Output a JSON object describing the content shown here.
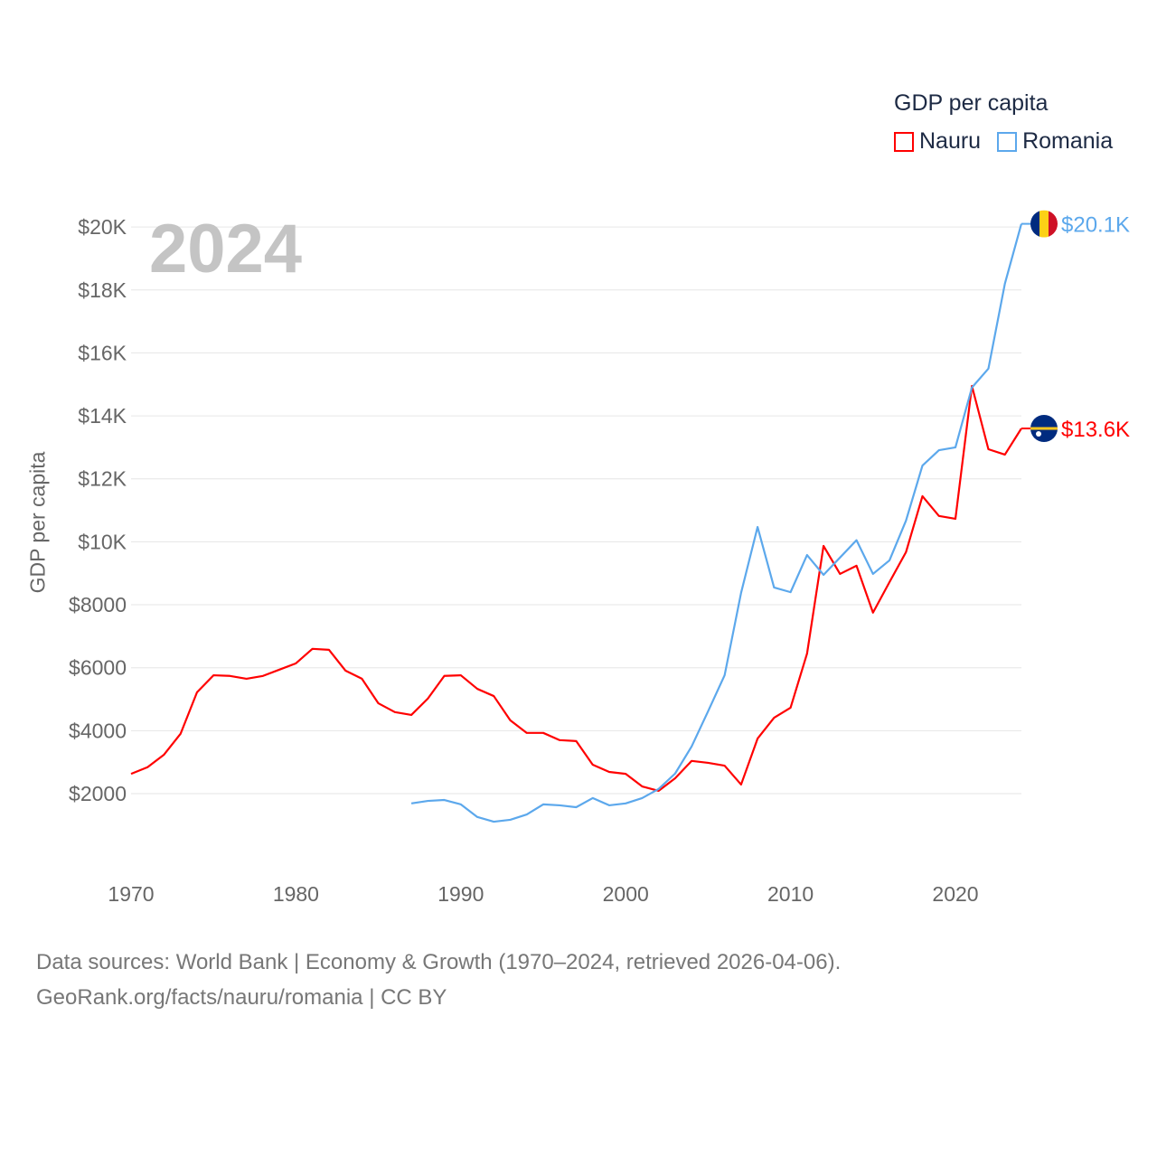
{
  "chart_data": {
    "type": "line",
    "title": "GDP per capita",
    "ylabel": "GDP per capita",
    "xlabel": "",
    "year_label": "2024",
    "xlim": [
      1970,
      2024
    ],
    "ylim": [
      0,
      20000
    ],
    "x_ticks": [
      "1970",
      "1980",
      "1990",
      "2000",
      "2010",
      "2020"
    ],
    "x_tick_values": [
      1970,
      1980,
      1990,
      2000,
      2010,
      2020
    ],
    "y_ticks": [
      "$2000",
      "$4000",
      "$6000",
      "$8000",
      "$10K",
      "$12K",
      "$14K",
      "$16K",
      "$18K",
      "$20K"
    ],
    "y_tick_values": [
      2000,
      4000,
      6000,
      8000,
      10000,
      12000,
      14000,
      16000,
      18000,
      20000
    ],
    "grid": true,
    "legend_placement": "top-right",
    "series": [
      {
        "name": "Nauru",
        "color": "#ff0000",
        "end_label": "$13.6K",
        "flag": "nauru-flag",
        "x": [
          1970,
          1971,
          1972,
          1973,
          1974,
          1975,
          1976,
          1977,
          1978,
          1979,
          1980,
          1981,
          1982,
          1983,
          1984,
          1985,
          1986,
          1987,
          1988,
          1989,
          1990,
          1991,
          1992,
          1993,
          1994,
          1995,
          1996,
          1997,
          1998,
          1999,
          2000,
          2001,
          2002,
          2003,
          2004,
          2005,
          2006,
          2007,
          2008,
          2009,
          2010,
          2011,
          2012,
          2013,
          2014,
          2015,
          2016,
          2017,
          2018,
          2019,
          2020,
          2021,
          2022,
          2023,
          2024
        ],
        "values": [
          2630,
          2840,
          3240,
          3900,
          5220,
          5760,
          5740,
          5650,
          5740,
          5940,
          6140,
          6600,
          6570,
          5910,
          5650,
          4870,
          4590,
          4500,
          5020,
          5740,
          5760,
          5330,
          5100,
          4330,
          3930,
          3930,
          3700,
          3670,
          2920,
          2690,
          2630,
          2230,
          2090,
          2490,
          3040,
          2980,
          2890,
          2290,
          3750,
          4410,
          4730,
          6450,
          9870,
          8980,
          9240,
          7750,
          8720,
          9670,
          11450,
          10820,
          10730,
          14950,
          12940,
          12770,
          13600
        ]
      },
      {
        "name": "Romania",
        "color": "#5ca8ec",
        "end_label": "$20.1K",
        "flag": "romania-flag",
        "x": [
          1987,
          1988,
          1989,
          1990,
          1991,
          1992,
          1993,
          1994,
          1995,
          1996,
          1997,
          1998,
          1999,
          2000,
          2001,
          2002,
          2003,
          2004,
          2005,
          2006,
          2007,
          2008,
          2009,
          2010,
          2011,
          2012,
          2013,
          2014,
          2015,
          2016,
          2017,
          2018,
          2019,
          2020,
          2021,
          2022,
          2023,
          2024
        ],
        "values": [
          1690,
          1770,
          1800,
          1660,
          1260,
          1110,
          1170,
          1340,
          1660,
          1630,
          1570,
          1860,
          1630,
          1690,
          1860,
          2150,
          2640,
          3500,
          4620,
          5760,
          8380,
          10470,
          8550,
          8400,
          9580,
          8950,
          9500,
          10050,
          8980,
          9410,
          10670,
          12420,
          12910,
          13000,
          14900,
          15500,
          18200,
          20100
        ]
      }
    ]
  },
  "legend": {
    "title": "GDP per capita",
    "items": [
      "Nauru",
      "Romania"
    ]
  },
  "source": {
    "line1": "Data sources: World Bank | Economy & Growth (1970–2024, retrieved 2026-04-06).",
    "line2": "GeoRank.org/facts/nauru/romania | CC BY"
  }
}
